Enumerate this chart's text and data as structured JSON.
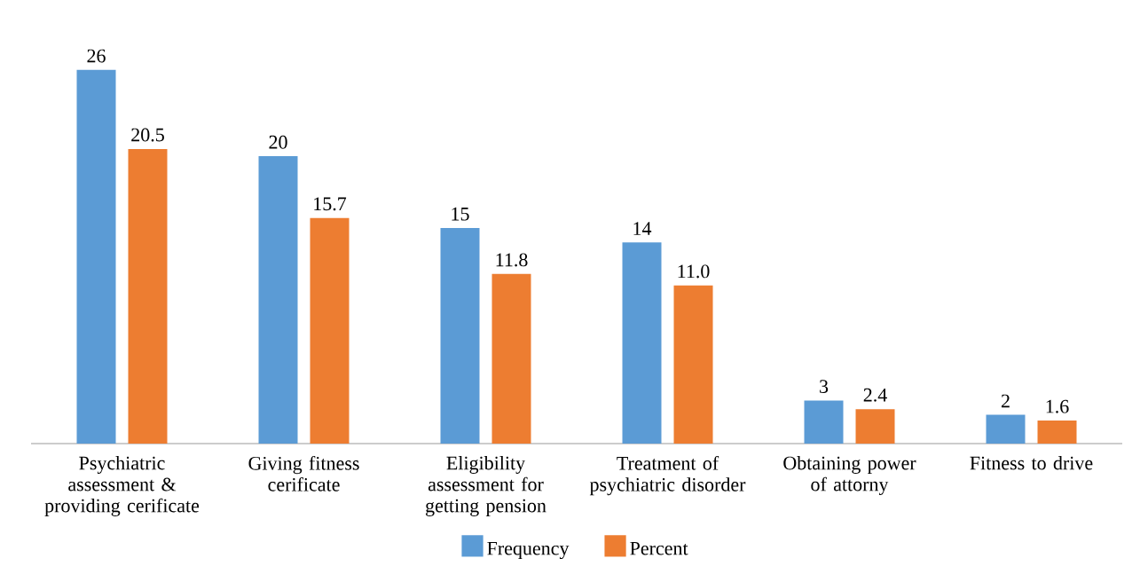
{
  "chart_data": {
    "type": "bar",
    "categories": [
      "Psychiatric assessment & providing cerificate",
      "Giving fitness cerificate",
      "Eligibility assessment for getting pension",
      "Treatment of psychiatric disorder",
      "Obtaining power of attorny",
      "Fitness to drive"
    ],
    "series": [
      {
        "name": "Frequency",
        "color": "#5b9bd5",
        "values": [
          26,
          20,
          15,
          14,
          3,
          2
        ],
        "value_labels": [
          "26",
          "20",
          "15",
          "14",
          "3",
          "2"
        ]
      },
      {
        "name": "Percent",
        "color": "#ed7d31",
        "values": [
          20.5,
          15.7,
          11.8,
          11.0,
          2.4,
          1.6
        ],
        "value_labels": [
          "20.5",
          "15.7",
          "11.8",
          "11.0",
          "2.4",
          "1.6"
        ]
      }
    ],
    "legend": "bottom"
  }
}
